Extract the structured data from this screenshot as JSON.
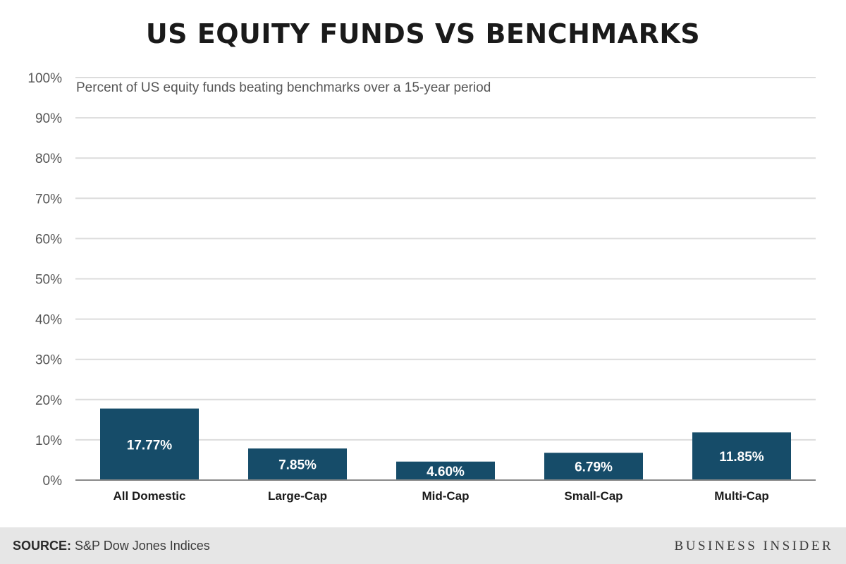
{
  "header": {
    "title": "US EQUITY FUNDS VS BENCHMARKS"
  },
  "footer": {
    "source_label": "SOURCE:",
    "source_text": "S&P Dow Jones Indices",
    "brand": "BUSINESS INSIDER"
  },
  "colors": {
    "bar": "#164c69",
    "grid": "#dcdcdc",
    "axis": "#8a8a8a",
    "tick_text": "#555555",
    "bar_label": "#ffffff",
    "category_text": "#1a1a1a"
  },
  "chart_data": {
    "type": "bar",
    "title": "US EQUITY FUNDS VS BENCHMARKS",
    "subtitle": "Percent of US equity funds beating benchmarks over a 15-year period",
    "categories": [
      "All Domestic",
      "Large-Cap",
      "Mid-Cap",
      "Small-Cap",
      "Multi-Cap"
    ],
    "values": [
      17.77,
      7.85,
      4.6,
      6.79,
      11.85
    ],
    "value_labels": [
      "17.77%",
      "7.85%",
      "4.60%",
      "6.79%",
      "11.85%"
    ],
    "y_ticks": [
      0,
      10,
      20,
      30,
      40,
      50,
      60,
      70,
      80,
      90,
      100
    ],
    "y_tick_labels": [
      "0%",
      "10%",
      "20%",
      "30%",
      "40%",
      "50%",
      "60%",
      "70%",
      "80%",
      "90%",
      "100%"
    ],
    "ylim": [
      0,
      100
    ],
    "xlabel": "",
    "ylabel": "",
    "grid": true,
    "legend": "none"
  }
}
